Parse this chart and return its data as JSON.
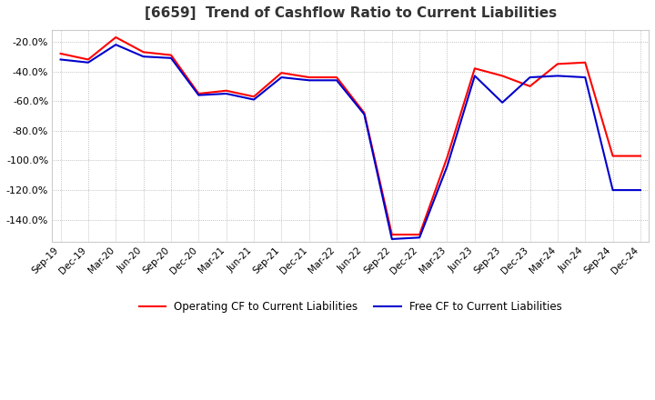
{
  "title": "[6659]  Trend of Cashflow Ratio to Current Liabilities",
  "x_labels": [
    "Sep-19",
    "Dec-19",
    "Mar-20",
    "Jun-20",
    "Sep-20",
    "Dec-20",
    "Mar-21",
    "Jun-21",
    "Sep-21",
    "Dec-21",
    "Mar-22",
    "Jun-22",
    "Sep-22",
    "Dec-22",
    "Mar-23",
    "Jun-23",
    "Sep-23",
    "Dec-23",
    "Mar-24",
    "Jun-24",
    "Sep-24",
    "Dec-24"
  ],
  "operating_cf": [
    -28,
    -32,
    -17,
    -27,
    -29,
    -55,
    -53,
    -57,
    -41,
    -44,
    -44,
    -68,
    -150,
    -150,
    -98,
    -38,
    -43,
    -50,
    -35,
    -34,
    -97,
    -97
  ],
  "free_cf": [
    -32,
    -34,
    -22,
    -30,
    -31,
    -56,
    -55,
    -59,
    -44,
    -46,
    -46,
    -69,
    -153,
    -152,
    -104,
    -43,
    -61,
    -44,
    -43,
    -44,
    -120,
    -120
  ],
  "operating_color": "#ff0000",
  "free_color": "#0000cc",
  "ylim": [
    -155,
    -12
  ],
  "yticks": [
    -140,
    -120,
    -100,
    -80,
    -60,
    -40,
    -20
  ],
  "background_color": "#ffffff",
  "grid_color": "#999999",
  "legend_labels": [
    "Operating CF to Current Liabilities",
    "Free CF to Current Liabilities"
  ]
}
